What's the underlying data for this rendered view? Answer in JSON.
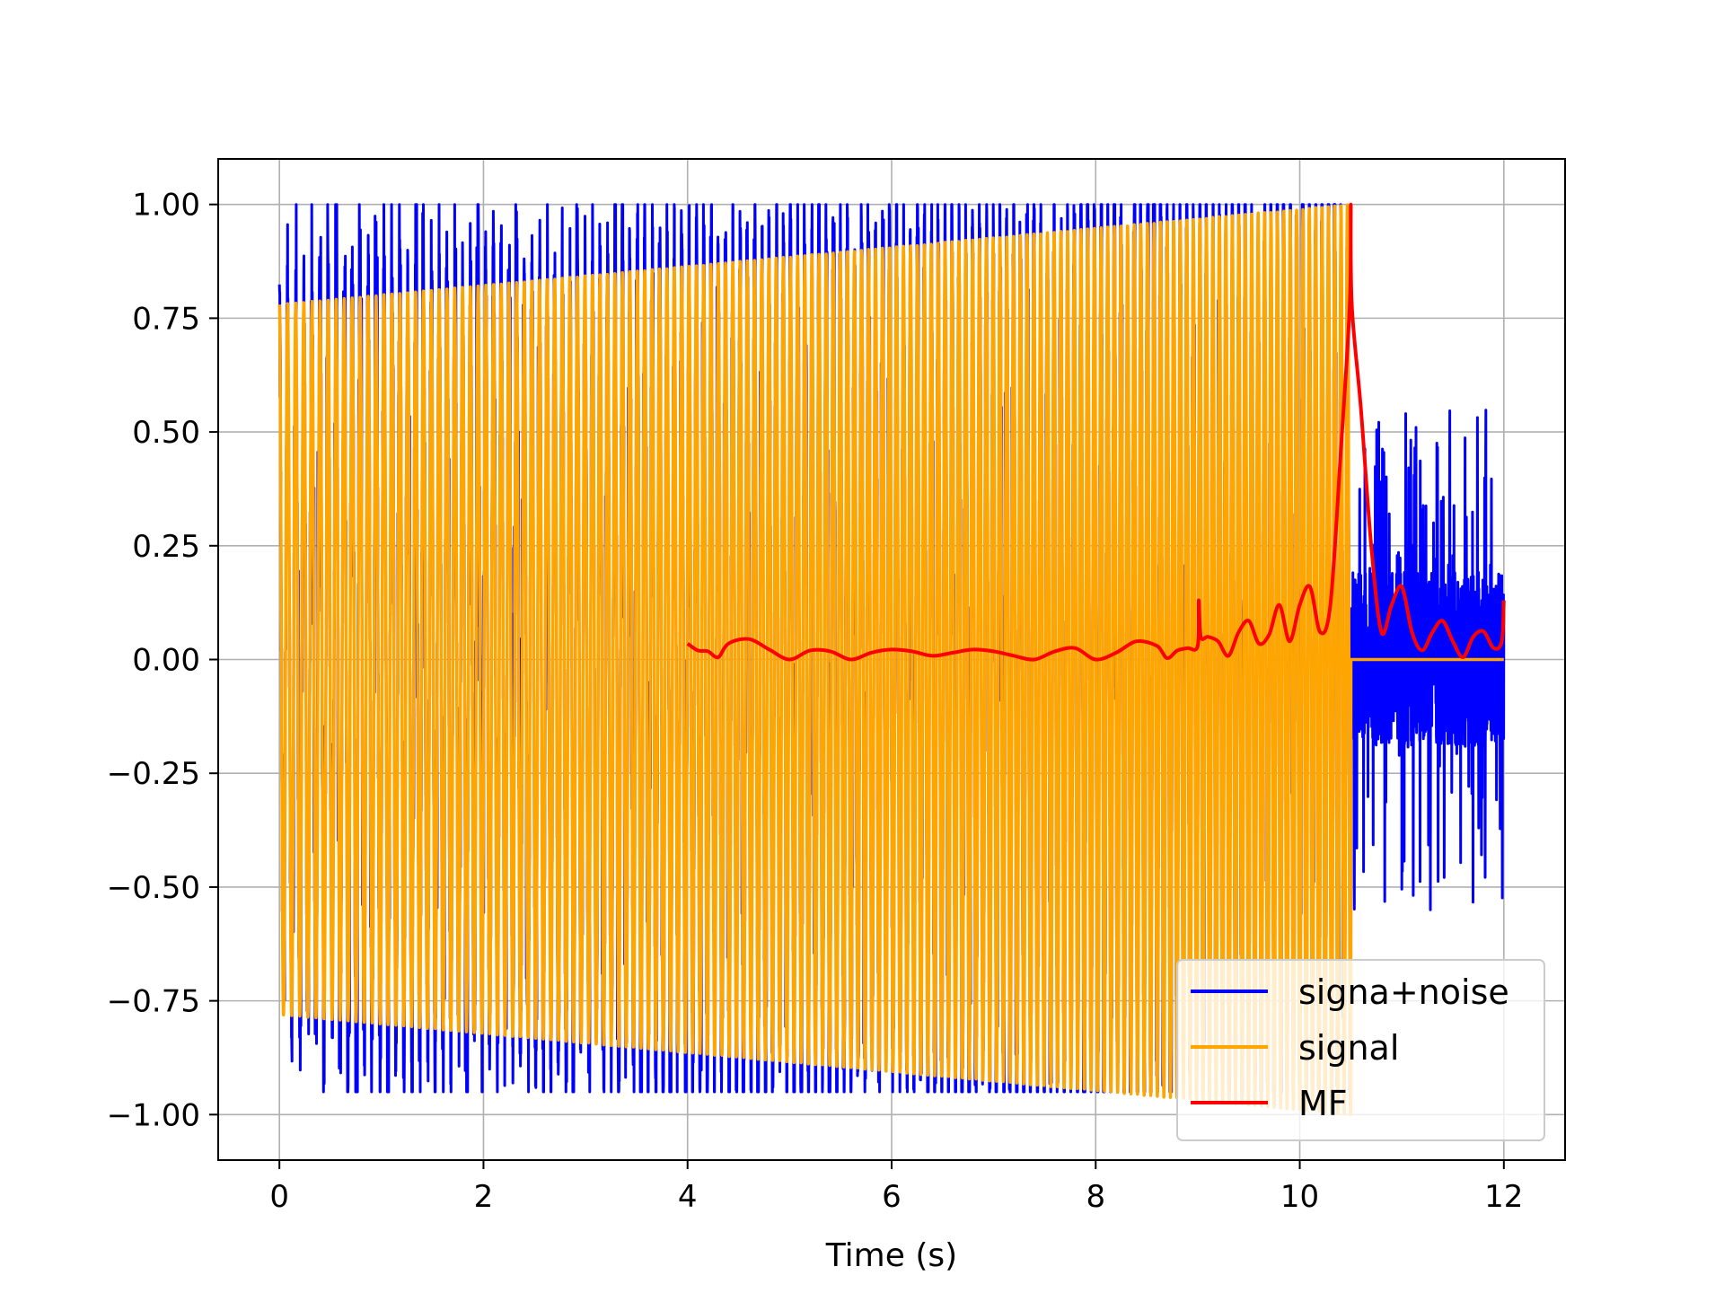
{
  "chart_data": {
    "type": "line",
    "title": "",
    "xlabel": "Time (s)",
    "ylabel": "",
    "xlim": [
      -0.6,
      12.6
    ],
    "ylim": [
      -1.1,
      1.1
    ],
    "xticks": [
      0,
      2,
      4,
      6,
      8,
      10,
      12
    ],
    "xtick_labels": [
      "0",
      "2",
      "4",
      "6",
      "8",
      "10",
      "12"
    ],
    "yticks": [
      -1.0,
      -0.75,
      -0.5,
      -0.25,
      0.0,
      0.25,
      0.5,
      0.75,
      1.0
    ],
    "ytick_labels": [
      "−1.00",
      "−0.75",
      "−0.50",
      "−0.25",
      "0.00",
      "0.25",
      "0.50",
      "0.75",
      "1.00"
    ],
    "grid": true,
    "legend_position": "bottom-right",
    "series": [
      {
        "name": "signa+noise",
        "color": "#0000ff",
        "description_kind": "chirp plus noise",
        "x_range": [
          0,
          12
        ],
        "signal_extent": [
          0,
          10.5
        ],
        "peak_values": [
          1.0,
          0.94,
          0.89,
          0.97,
          0.84,
          0.87,
          0.91,
          0.83
        ],
        "trough_values": [
          -0.85,
          -0.82,
          -0.89,
          -0.9
        ],
        "noise_amplitude": 0.55
      },
      {
        "name": "signal",
        "color": "#ffa500",
        "x_range": [
          0,
          12
        ],
        "active_range": [
          0,
          10.5
        ],
        "amplitude_start": 0.78,
        "amplitude_end": 1.0,
        "after_active_value": 0.0
      },
      {
        "name": "MF",
        "color": "#ff0000",
        "x": [
          4.0,
          4.1,
          4.2,
          4.3,
          4.4,
          4.6,
          4.8,
          5.0,
          5.2,
          5.4,
          5.6,
          5.8,
          6.0,
          6.2,
          6.4,
          6.6,
          6.8,
          7.0,
          7.2,
          7.4,
          7.6,
          7.8,
          8.0,
          8.2,
          8.4,
          8.6,
          8.7,
          8.8,
          8.9,
          9.0,
          9.01,
          9.03,
          9.1,
          9.2,
          9.3,
          9.4,
          9.5,
          9.6,
          9.7,
          9.8,
          9.9,
          10.0,
          10.1,
          10.2,
          10.3,
          10.4,
          10.49,
          10.5,
          10.51,
          10.6,
          10.7,
          10.8,
          10.9,
          11.0,
          11.1,
          11.2,
          11.3,
          11.4,
          11.5,
          11.6,
          11.7,
          11.8,
          11.9,
          11.98,
          12.0
        ],
        "y": [
          0.035,
          0.02,
          0.018,
          0.005,
          0.035,
          0.045,
          0.022,
          0.0,
          0.02,
          0.018,
          0.0,
          0.015,
          0.022,
          0.018,
          0.008,
          0.015,
          0.022,
          0.018,
          0.008,
          0.0,
          0.018,
          0.025,
          0.0,
          0.015,
          0.04,
          0.03,
          0.003,
          0.02,
          0.025,
          0.03,
          0.13,
          0.05,
          0.05,
          0.04,
          0.008,
          0.06,
          0.085,
          0.035,
          0.055,
          0.12,
          0.04,
          0.12,
          0.16,
          0.06,
          0.12,
          0.45,
          0.78,
          1.0,
          0.78,
          0.55,
          0.25,
          0.06,
          0.12,
          0.16,
          0.06,
          0.02,
          0.06,
          0.085,
          0.04,
          0.005,
          0.05,
          0.062,
          0.025,
          0.04,
          0.13
        ]
      }
    ]
  }
}
